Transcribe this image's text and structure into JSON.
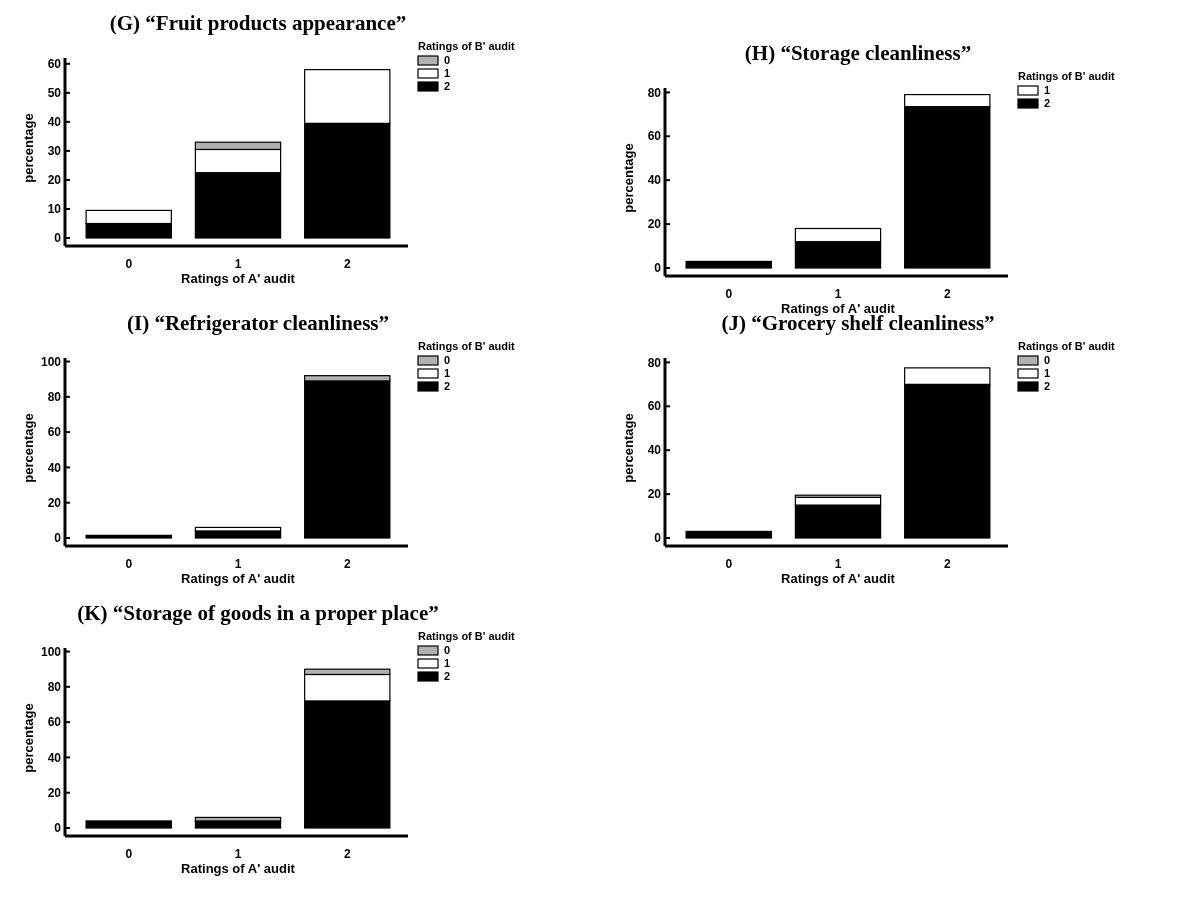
{
  "chart_data": [
    {
      "type": "bar",
      "stacked": true,
      "title": "(G) “Fruit products appearance”",
      "xlabel": "Ratings of A' audit",
      "ylabel": "percentage",
      "legend_title": "Ratings of B' audit",
      "legend": "top right",
      "categories": [
        "0",
        "1",
        "2"
      ],
      "ylim": [
        0,
        62
      ],
      "yticks": [
        0,
        10,
        20,
        30,
        40,
        50,
        60
      ],
      "series": [
        {
          "name": "2",
          "color": "#000000",
          "values": [
            5,
            22.5,
            39.5
          ]
        },
        {
          "name": "1",
          "color": "#ffffff",
          "values": [
            4.5,
            8,
            18.5
          ]
        },
        {
          "name": "0",
          "color": "#b0b0b0",
          "values": [
            0,
            2.5,
            0
          ]
        }
      ]
    },
    {
      "type": "bar",
      "stacked": true,
      "title": "(H) “Storage cleanliness”",
      "xlabel": "Ratings of A' audit",
      "ylabel": "percentage",
      "legend_title": "Ratings of B' audit",
      "legend": "top right",
      "categories": [
        "0",
        "1",
        "2"
      ],
      "ylim": [
        0,
        82
      ],
      "yticks": [
        0,
        20,
        40,
        60,
        80
      ],
      "series": [
        {
          "name": "2",
          "color": "#000000",
          "values": [
            3,
            12,
            73.5
          ]
        },
        {
          "name": "1",
          "color": "#ffffff",
          "values": [
            0,
            6,
            5.5
          ]
        }
      ]
    },
    {
      "type": "bar",
      "stacked": true,
      "title": "(I) “Refrigerator cleanliness”",
      "xlabel": "Ratings of A' audit",
      "ylabel": "percentage",
      "legend_title": "Ratings of B' audit",
      "legend": "top right",
      "categories": [
        "0",
        "1",
        "2"
      ],
      "ylim": [
        0,
        102
      ],
      "yticks": [
        0,
        20,
        40,
        60,
        80,
        100
      ],
      "series": [
        {
          "name": "2",
          "color": "#000000",
          "values": [
            1.5,
            4,
            89
          ]
        },
        {
          "name": "1",
          "color": "#ffffff",
          "values": [
            0,
            2,
            0
          ]
        },
        {
          "name": "0",
          "color": "#b0b0b0",
          "values": [
            0,
            0,
            3
          ]
        }
      ]
    },
    {
      "type": "bar",
      "stacked": true,
      "title": "(J) “Grocery shelf cleanliness”",
      "xlabel": "Ratings of A' audit",
      "ylabel": "percentage",
      "legend_title": "Ratings of B' audit",
      "legend": "top right",
      "categories": [
        "0",
        "1",
        "2"
      ],
      "ylim": [
        0,
        82
      ],
      "yticks": [
        0,
        20,
        40,
        60,
        80
      ],
      "series": [
        {
          "name": "2",
          "color": "#000000",
          "values": [
            3,
            15,
            70
          ]
        },
        {
          "name": "1",
          "color": "#ffffff",
          "values": [
            0,
            3.5,
            7.5
          ]
        },
        {
          "name": "0",
          "color": "#b0b0b0",
          "values": [
            0,
            1,
            0
          ]
        }
      ]
    },
    {
      "type": "bar",
      "stacked": true,
      "title": "(K) “Storage of goods in a proper place”",
      "xlabel": "Ratings of A' audit",
      "ylabel": "percentage",
      "legend_title": "Ratings of B' audit",
      "legend": "top right",
      "categories": [
        "0",
        "1",
        "2"
      ],
      "ylim": [
        0,
        102
      ],
      "yticks": [
        0,
        20,
        40,
        60,
        80,
        100
      ],
      "series": [
        {
          "name": "2",
          "color": "#000000",
          "values": [
            4,
            4,
            72
          ]
        },
        {
          "name": "1",
          "color": "#ffffff",
          "values": [
            0,
            0,
            15
          ]
        },
        {
          "name": "0",
          "color": "#b0b0b0",
          "values": [
            0,
            2,
            3
          ]
        }
      ]
    }
  ]
}
